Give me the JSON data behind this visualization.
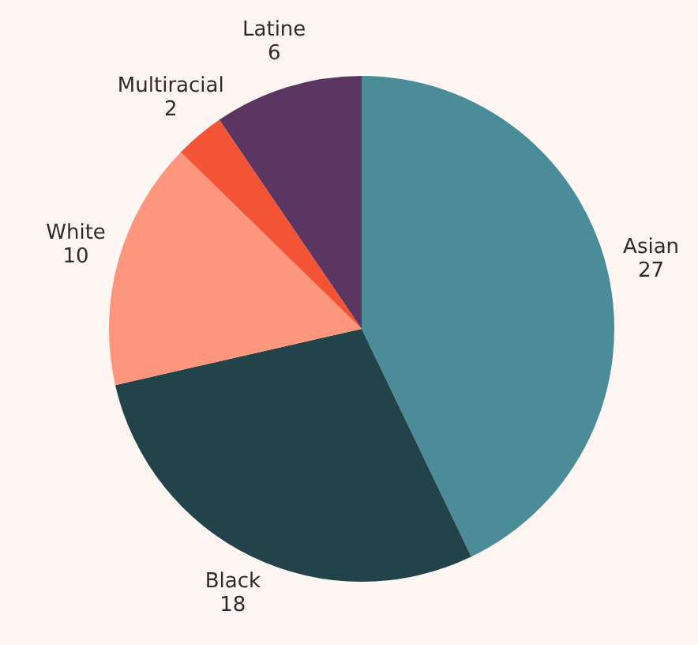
{
  "chart_data": {
    "type": "pie",
    "categories": [
      "Asian",
      "Black",
      "White",
      "Multiracial",
      "Latine"
    ],
    "values": [
      27,
      18,
      10,
      2,
      6
    ],
    "colors": [
      "#4a8c98",
      "#23434a",
      "#fe967e",
      "#f45436",
      "#5c3663"
    ],
    "data_labels": true
  }
}
